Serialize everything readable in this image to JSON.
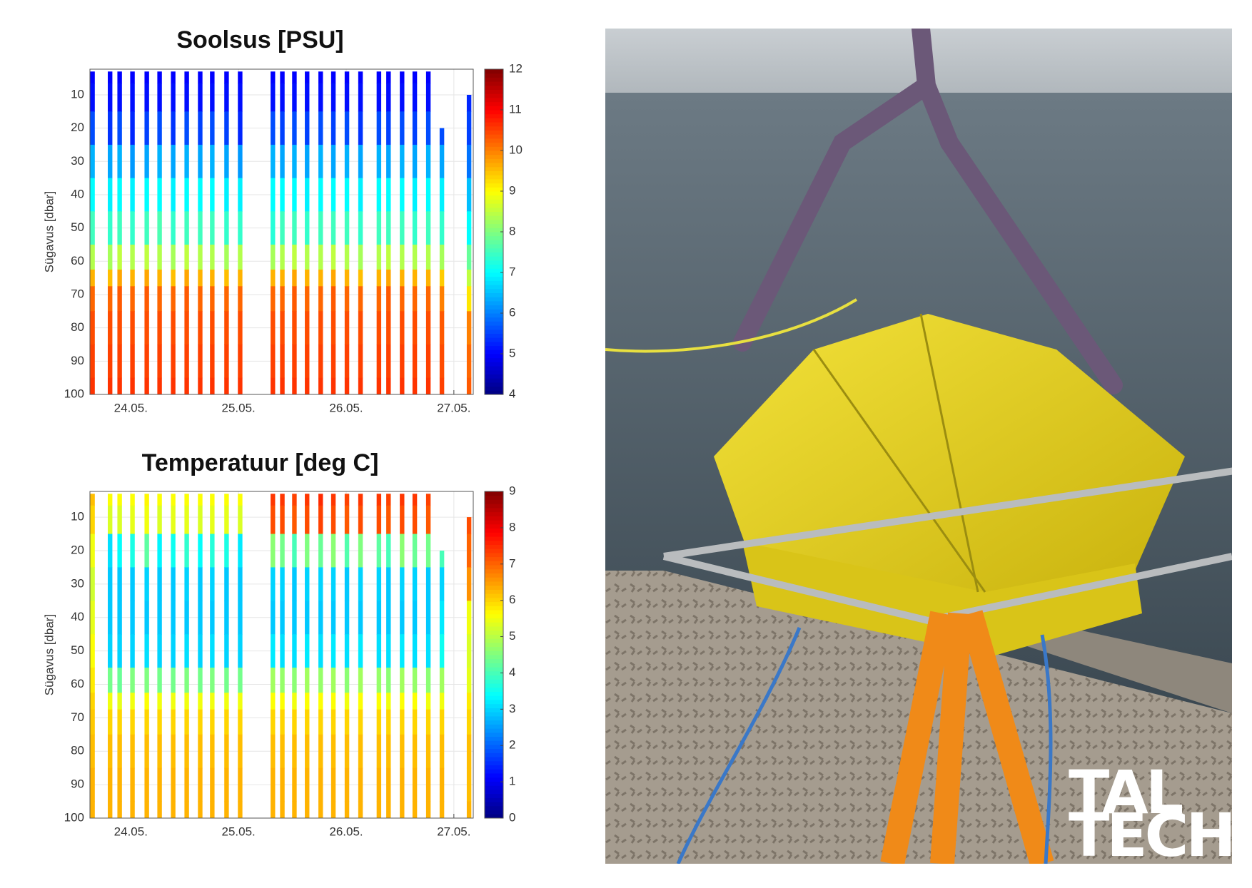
{
  "chart_data": [
    {
      "type": "profile",
      "title": "Soolsus [PSU]",
      "ylabel": "Sügavus [dbar]",
      "xlim": [
        23.62,
        27.18
      ],
      "xticks": [
        {
          "value": 24,
          "label": "24.05."
        },
        {
          "value": 25,
          "label": "25.05."
        },
        {
          "value": 26,
          "label": "26.05."
        },
        {
          "value": 27,
          "label": "27.05."
        }
      ],
      "ylim": [
        2.3,
        100
      ],
      "yticks": [
        10,
        20,
        30,
        40,
        50,
        60,
        70,
        80,
        90,
        100
      ],
      "y_reversed": true,
      "grid": true,
      "colormap": "jet",
      "clim": [
        4,
        12
      ],
      "cticks": [
        4,
        5,
        6,
        7,
        8,
        9,
        10,
        11,
        12
      ],
      "depths": [
        3,
        10,
        20,
        30,
        40,
        50,
        60,
        65,
        70,
        80,
        90,
        100
      ],
      "x": [
        23.644,
        23.807,
        23.896,
        24.015,
        24.148,
        24.267,
        24.393,
        24.519,
        24.644,
        24.756,
        24.889,
        25.015,
        25.319,
        25.407,
        25.519,
        25.637,
        25.763,
        25.881,
        26.007,
        26.133,
        26.304,
        26.393,
        26.519,
        26.637,
        26.763,
        26.889,
        27.141
      ],
      "values": [
        [
          5.0,
          5.1,
          5.6,
          6.4,
          7.0,
          7.5,
          8.4,
          9.6,
          10.2,
          10.4,
          10.5,
          10.6
        ],
        [
          5.0,
          5.1,
          5.4,
          6.3,
          6.9,
          7.4,
          8.3,
          9.5,
          10.2,
          10.4,
          10.5,
          10.6
        ],
        [
          5.0,
          5.1,
          5.6,
          6.4,
          7.0,
          7.5,
          8.5,
          9.7,
          10.3,
          10.4,
          10.5,
          10.6
        ],
        [
          5.0,
          5.1,
          5.3,
          6.2,
          6.9,
          7.4,
          8.4,
          9.6,
          10.2,
          10.4,
          10.5,
          10.6
        ],
        [
          5.0,
          5.1,
          5.5,
          6.3,
          7.0,
          7.5,
          8.5,
          9.7,
          10.3,
          10.4,
          10.5,
          10.6
        ],
        [
          5.0,
          5.1,
          5.6,
          6.4,
          7.0,
          7.6,
          8.4,
          9.6,
          10.2,
          10.4,
          10.5,
          10.6
        ],
        [
          5.0,
          5.1,
          5.4,
          6.3,
          6.9,
          7.4,
          8.3,
          9.5,
          10.2,
          10.4,
          10.5,
          10.6
        ],
        [
          5.0,
          5.1,
          5.6,
          6.4,
          7.0,
          7.5,
          8.5,
          9.7,
          10.3,
          10.4,
          10.5,
          10.6
        ],
        [
          5.0,
          5.1,
          5.5,
          6.3,
          7.0,
          7.5,
          8.4,
          9.6,
          10.2,
          10.4,
          10.5,
          10.6
        ],
        [
          5.0,
          5.1,
          5.6,
          6.4,
          7.0,
          7.5,
          8.4,
          9.6,
          10.2,
          10.4,
          10.5,
          10.6
        ],
        [
          5.0,
          5.1,
          5.5,
          6.3,
          6.9,
          7.4,
          8.3,
          9.5,
          10.2,
          10.4,
          10.5,
          10.6
        ],
        [
          5.0,
          5.1,
          5.3,
          6.2,
          6.9,
          7.4,
          8.4,
          9.6,
          10.2,
          10.4,
          10.5,
          10.6
        ],
        [
          5.0,
          5.1,
          5.6,
          6.4,
          7.0,
          7.3,
          8.3,
          9.6,
          10.2,
          10.4,
          10.5,
          10.6
        ],
        [
          5.0,
          5.1,
          5.5,
          6.3,
          7.0,
          7.5,
          8.4,
          9.6,
          10.2,
          10.4,
          10.5,
          10.6
        ],
        [
          5.0,
          5.1,
          5.6,
          6.4,
          7.0,
          7.5,
          8.5,
          9.7,
          10.3,
          10.4,
          10.5,
          10.6
        ],
        [
          5.0,
          5.1,
          5.5,
          6.3,
          6.9,
          7.4,
          8.4,
          9.6,
          10.2,
          10.4,
          10.5,
          10.6
        ],
        [
          5.0,
          5.1,
          5.6,
          6.4,
          7.0,
          7.5,
          8.4,
          9.6,
          10.2,
          10.4,
          10.5,
          10.6
        ],
        [
          5.0,
          5.1,
          5.5,
          6.3,
          7.0,
          7.5,
          8.5,
          9.7,
          10.3,
          10.4,
          10.5,
          10.6
        ],
        [
          5.0,
          5.1,
          5.6,
          6.4,
          7.0,
          7.5,
          8.4,
          9.6,
          10.2,
          10.4,
          10.5,
          10.6
        ],
        [
          5.0,
          5.1,
          5.4,
          6.3,
          6.9,
          7.4,
          8.3,
          9.5,
          10.2,
          10.4,
          10.5,
          10.6
        ],
        [
          5.0,
          5.1,
          5.6,
          6.4,
          7.0,
          7.5,
          8.4,
          9.6,
          10.2,
          10.4,
          10.5,
          10.6
        ],
        [
          5.0,
          5.1,
          5.5,
          6.3,
          7.0,
          7.5,
          8.5,
          9.7,
          10.3,
          10.4,
          10.5,
          10.6
        ],
        [
          5.0,
          5.1,
          5.6,
          6.4,
          7.0,
          7.5,
          8.4,
          9.6,
          10.2,
          10.4,
          10.5,
          10.6
        ],
        [
          5.0,
          5.1,
          5.5,
          6.3,
          6.9,
          7.4,
          8.4,
          9.6,
          10.2,
          10.4,
          10.5,
          10.6
        ],
        [
          5.0,
          5.1,
          5.6,
          6.4,
          7.0,
          7.5,
          8.4,
          9.6,
          10.2,
          10.4,
          10.5,
          10.6
        ],
        [
          null,
          null,
          5.6,
          6.3,
          6.9,
          7.4,
          8.3,
          9.4,
          10.0,
          10.3,
          10.4,
          10.5
        ],
        [
          null,
          5.3,
          5.5,
          5.9,
          6.5,
          7.0,
          7.8,
          8.5,
          9.2,
          10.0,
          10.2,
          10.3
        ]
      ]
    },
    {
      "type": "profile",
      "title": "Temperatuur [deg C]",
      "ylabel": "Sügavus [dbar]",
      "xlim": [
        23.62,
        27.18
      ],
      "xticks": [
        {
          "value": 24,
          "label": "24.05."
        },
        {
          "value": 25,
          "label": "25.05."
        },
        {
          "value": 26,
          "label": "26.05."
        },
        {
          "value": 27,
          "label": "27.05."
        }
      ],
      "ylim": [
        2.3,
        100
      ],
      "yticks": [
        10,
        20,
        30,
        40,
        50,
        60,
        70,
        80,
        90,
        100
      ],
      "y_reversed": true,
      "grid": true,
      "colormap": "jet",
      "clim": [
        0,
        9
      ],
      "cticks": [
        0,
        1,
        2,
        3,
        4,
        5,
        6,
        7,
        8,
        9
      ],
      "depths": [
        3,
        10,
        20,
        30,
        40,
        50,
        60,
        65,
        70,
        80,
        90,
        100
      ],
      "x": [
        23.644,
        23.807,
        23.896,
        24.015,
        24.148,
        24.267,
        24.393,
        24.519,
        24.644,
        24.756,
        24.889,
        25.015,
        25.319,
        25.407,
        25.519,
        25.637,
        25.763,
        25.881,
        26.007,
        26.133,
        26.304,
        26.393,
        26.519,
        26.637,
        26.763,
        26.889,
        27.141
      ],
      "values": [
        [
          6.2,
          6.0,
          5.5,
          5.2,
          5.4,
          5.6,
          5.8,
          6.0,
          6.1,
          6.2,
          6.3,
          6.3
        ],
        [
          5.6,
          5.3,
          3.1,
          2.9,
          2.9,
          3.0,
          4.4,
          5.5,
          6.0,
          6.2,
          6.3,
          6.3
        ],
        [
          5.6,
          5.3,
          3.4,
          2.9,
          2.9,
          3.0,
          4.3,
          5.4,
          6.0,
          6.2,
          6.3,
          6.3
        ],
        [
          5.6,
          5.4,
          3.6,
          2.9,
          2.9,
          3.0,
          4.5,
          5.5,
          6.0,
          6.2,
          6.3,
          6.3
        ],
        [
          5.7,
          5.5,
          4.2,
          3.0,
          2.9,
          3.1,
          4.5,
          5.6,
          6.0,
          6.2,
          6.3,
          6.3
        ],
        [
          5.6,
          5.3,
          3.3,
          2.9,
          2.9,
          3.0,
          4.4,
          5.5,
          6.0,
          6.2,
          6.3,
          6.3
        ],
        [
          5.6,
          5.4,
          3.5,
          2.9,
          2.9,
          3.0,
          4.4,
          5.5,
          6.0,
          6.2,
          6.3,
          6.3
        ],
        [
          5.6,
          5.4,
          3.8,
          3.0,
          2.9,
          3.1,
          4.5,
          5.5,
          6.0,
          6.2,
          6.3,
          6.3
        ],
        [
          5.6,
          5.3,
          3.4,
          2.9,
          2.9,
          3.0,
          4.4,
          5.5,
          6.0,
          6.2,
          6.3,
          6.3
        ],
        [
          5.6,
          5.4,
          3.7,
          3.0,
          2.9,
          3.1,
          4.5,
          5.5,
          6.0,
          6.2,
          6.3,
          6.3
        ],
        [
          5.6,
          5.4,
          3.6,
          2.9,
          2.9,
          3.0,
          4.4,
          5.5,
          6.0,
          6.2,
          6.3,
          6.3
        ],
        [
          5.6,
          5.3,
          3.2,
          2.9,
          2.9,
          3.0,
          4.4,
          5.5,
          6.0,
          6.2,
          6.3,
          6.3
        ],
        [
          7.4,
          7.2,
          4.6,
          3.0,
          2.9,
          3.2,
          4.8,
          5.6,
          6.0,
          6.2,
          6.3,
          6.3
        ],
        [
          7.4,
          7.2,
          4.4,
          3.0,
          2.9,
          3.1,
          4.7,
          5.6,
          6.0,
          6.2,
          6.3,
          6.3
        ],
        [
          7.3,
          7.1,
          4.0,
          2.9,
          2.9,
          3.1,
          4.6,
          5.5,
          6.0,
          6.2,
          6.3,
          6.3
        ],
        [
          7.4,
          7.2,
          4.5,
          3.0,
          2.9,
          3.2,
          4.8,
          5.6,
          6.0,
          6.2,
          6.3,
          6.3
        ],
        [
          7.5,
          7.3,
          4.3,
          3.0,
          2.9,
          3.1,
          4.7,
          5.6,
          6.0,
          6.2,
          6.3,
          6.3
        ],
        [
          7.4,
          7.2,
          4.6,
          3.0,
          2.9,
          3.2,
          4.8,
          5.6,
          6.0,
          6.2,
          6.3,
          6.3
        ],
        [
          7.3,
          7.1,
          4.1,
          2.9,
          2.9,
          3.1,
          4.6,
          5.5,
          6.0,
          6.2,
          6.3,
          6.3
        ],
        [
          7.4,
          7.2,
          4.5,
          3.0,
          2.9,
          3.2,
          4.8,
          5.6,
          6.0,
          6.2,
          6.3,
          6.3
        ],
        [
          7.4,
          7.2,
          4.2,
          3.0,
          2.9,
          3.1,
          4.7,
          5.6,
          6.0,
          6.2,
          6.3,
          6.3
        ],
        [
          7.3,
          7.1,
          4.0,
          2.9,
          2.9,
          3.1,
          4.6,
          5.5,
          6.0,
          6.2,
          6.3,
          6.3
        ],
        [
          7.4,
          7.2,
          4.6,
          3.0,
          2.9,
          3.2,
          4.8,
          5.6,
          6.0,
          6.2,
          6.3,
          6.3
        ],
        [
          7.4,
          7.2,
          4.3,
          3.0,
          2.9,
          3.1,
          4.7,
          5.6,
          6.0,
          6.2,
          6.3,
          6.3
        ],
        [
          7.3,
          7.1,
          4.4,
          2.9,
          2.9,
          3.1,
          4.6,
          5.5,
          6.0,
          6.2,
          6.3,
          6.3
        ],
        [
          null,
          null,
          4.0,
          3.0,
          3.2,
          3.5,
          4.8,
          5.5,
          6.0,
          6.2,
          6.3,
          6.3
        ],
        [
          null,
          7.2,
          7.0,
          6.6,
          5.5,
          5.3,
          5.4,
          5.8,
          6.0,
          6.2,
          6.2,
          6.3
        ]
      ]
    }
  ],
  "logo": [
    "TAL",
    "TECH"
  ]
}
